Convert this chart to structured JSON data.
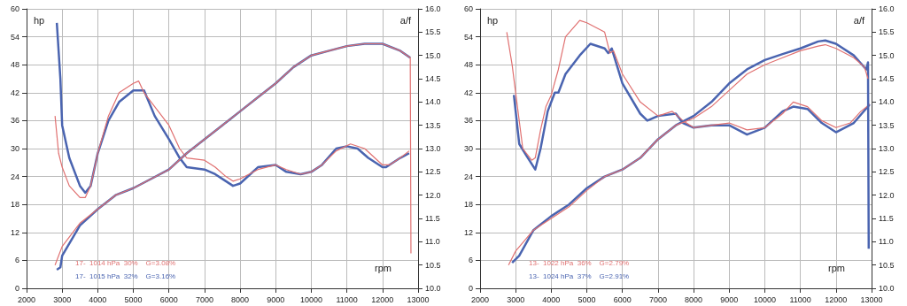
{
  "chart_data": [
    {
      "type": "line",
      "xlabel": "rpm",
      "ylabel": "hp",
      "y2label": "a/f",
      "grid": true,
      "legend": "bottom left",
      "xlim": [
        2000,
        13000
      ],
      "xticks": [
        2000,
        3000,
        4000,
        5000,
        6000,
        7000,
        8000,
        9000,
        10000,
        11000,
        12000,
        13000
      ],
      "ylim": [
        0,
        60
      ],
      "yticks": [
        0,
        6,
        12,
        18,
        24,
        30,
        36,
        42,
        48,
        54,
        60
      ],
      "y2lim": [
        10,
        16
      ],
      "y2ticks": [
        {
          "value": 10,
          "label": "10.0"
        },
        10.5,
        {
          "value": 11,
          "label": "11.0"
        },
        11.5,
        {
          "value": 12,
          "label": "12.0"
        },
        12.5,
        {
          "value": 13,
          "label": "13.0"
        },
        13.5,
        {
          "value": 14,
          "label": "14.0"
        },
        14.5,
        {
          "value": 15,
          "label": "15.0"
        },
        15.5,
        {
          "value": 16,
          "label": "16.0"
        }
      ],
      "series": [
        {
          "name": "17-  1014 hPa  30%    G=3.08%",
          "color": "#e07070",
          "x": [
            2800,
            3000,
            3500,
            4000,
            4500,
            5000,
            5500,
            6000,
            6500,
            7000,
            7500,
            8000,
            8500,
            9000,
            9500,
            10000,
            10500,
            11000,
            11500,
            12000,
            12500,
            12780,
            12800
          ],
          "values": [
            5,
            9,
            14,
            17,
            20,
            21.5,
            23.5,
            25.5,
            29,
            32,
            35,
            38,
            41,
            44,
            47.5,
            50,
            51,
            52,
            52.5,
            52.5,
            51,
            49.5,
            7.5
          ]
        },
        {
          "name": "17-  1015 hPa  32%    G=3.16%",
          "color": "#4a64b0",
          "x": [
            2850,
            2950,
            3000,
            3500,
            4000,
            4500,
            5000,
            5500,
            6000,
            6500,
            7000,
            7500,
            8000,
            8500,
            9000,
            9500,
            10000,
            10500,
            11000,
            11500,
            12000,
            12500,
            12780
          ],
          "values": [
            4,
            4.5,
            7,
            13.5,
            17,
            20,
            21.5,
            23.5,
            25.5,
            29,
            32,
            35,
            38,
            41,
            44,
            47.5,
            50,
            51,
            52,
            52.5,
            52.5,
            51,
            49.5
          ]
        },
        {
          "axis": "y2",
          "color": "#e07070",
          "x": [
            2800,
            2900,
            3000,
            3200,
            3500,
            3650,
            3800,
            4000,
            4300,
            4600,
            5000,
            5150,
            5300,
            5600,
            6000,
            6300,
            6500,
            7000,
            7300,
            7600,
            7800,
            8000,
            8500,
            9000,
            9300,
            9700,
            10000,
            10300,
            10700,
            11100,
            11500,
            12000,
            12200,
            12500,
            12750
          ],
          "values": [
            13.7,
            12.9,
            12.6,
            12.2,
            11.95,
            11.95,
            12.2,
            12.9,
            13.7,
            14.2,
            14.4,
            14.45,
            14.2,
            13.9,
            13.5,
            13.0,
            12.8,
            12.75,
            12.6,
            12.4,
            12.3,
            12.35,
            12.55,
            12.65,
            12.55,
            12.45,
            12.5,
            12.65,
            12.95,
            13.1,
            13.0,
            12.65,
            12.65,
            12.8,
            12.95
          ]
        },
        {
          "axis": "y2",
          "color": "#4a64b0",
          "x": [
            2850,
            2950,
            3000,
            3200,
            3500,
            3650,
            3800,
            4000,
            4300,
            4600,
            5000,
            5300,
            5600,
            6000,
            6300,
            6500,
            7000,
            7300,
            7600,
            7800,
            8000,
            8500,
            9000,
            9300,
            9700,
            10000,
            10300,
            10700,
            11000,
            11300,
            11600,
            12000,
            12100,
            12500,
            12750
          ],
          "values": [
            15.7,
            14.5,
            13.5,
            12.8,
            12.2,
            12.05,
            12.2,
            12.9,
            13.6,
            14.0,
            14.25,
            14.25,
            13.7,
            13.2,
            12.8,
            12.6,
            12.55,
            12.45,
            12.3,
            12.2,
            12.25,
            12.6,
            12.65,
            12.5,
            12.45,
            12.5,
            12.65,
            13.0,
            13.05,
            13.0,
            12.8,
            12.6,
            12.6,
            12.8,
            12.9
          ]
        }
      ]
    },
    {
      "type": "line",
      "xlabel": "rpm",
      "ylabel": "hp",
      "y2label": "a/f",
      "grid": true,
      "legend": "bottom left",
      "xlim": [
        2000,
        13000
      ],
      "xticks": [
        2000,
        3000,
        4000,
        5000,
        6000,
        7000,
        8000,
        9000,
        10000,
        11000,
        12000,
        13000
      ],
      "ylim": [
        0,
        60
      ],
      "yticks": [
        0,
        6,
        12,
        18,
        24,
        30,
        36,
        42,
        48,
        54,
        60
      ],
      "y2lim": [
        10,
        16
      ],
      "y2ticks": [
        {
          "value": 10,
          "label": "10.0"
        },
        10.5,
        {
          "value": 11,
          "label": "11.0"
        },
        11.5,
        {
          "value": 12,
          "label": "12.0"
        },
        12.5,
        {
          "value": 13,
          "label": "13.0"
        },
        13.5,
        {
          "value": 14,
          "label": "14.0"
        },
        14.5,
        {
          "value": 15,
          "label": "15.0"
        },
        15.5,
        {
          "value": 16,
          "label": "16.0"
        }
      ],
      "series": [
        {
          "name": "13-  1022 hPa  36%    G=2.79%",
          "color": "#e07070",
          "x": [
            2800,
            3000,
            3500,
            4000,
            4500,
            5000,
            5500,
            6000,
            6500,
            7000,
            7500,
            8000,
            8500,
            9000,
            9500,
            10000,
            10500,
            11000,
            11500,
            11700,
            12000,
            12500,
            12800,
            12900
          ],
          "values": [
            5,
            8,
            12.5,
            15,
            17.5,
            21,
            24,
            25.5,
            28,
            32,
            35,
            36.5,
            39,
            42.5,
            46,
            48,
            49.5,
            51,
            52,
            52.3,
            51.5,
            49.5,
            47.5,
            45
          ]
        },
        {
          "name": "13-  1024 hPa  37%    G=2.91%",
          "color": "#4a64b0",
          "x": [
            2900,
            3100,
            3500,
            4000,
            4500,
            5000,
            5500,
            6000,
            6500,
            7000,
            7500,
            8000,
            8500,
            9000,
            9500,
            10000,
            10500,
            11000,
            11500,
            11700,
            12000,
            12500,
            12850,
            12900,
            12920
          ],
          "values": [
            5.5,
            7,
            12.5,
            15.5,
            18,
            21.5,
            24,
            25.5,
            28,
            32,
            35,
            37,
            40,
            44,
            47,
            49,
            50.3,
            51.5,
            53,
            53.2,
            52.5,
            50,
            47,
            48.5,
            8.5
          ]
        },
        {
          "axis": "y2",
          "color": "#e07070",
          "x": [
            2750,
            2900,
            3000,
            3200,
            3450,
            3550,
            3700,
            3850,
            4000,
            4200,
            4400,
            4800,
            5000,
            5500,
            5650,
            5750,
            6000,
            6500,
            7000,
            7400,
            7700,
            8000,
            8500,
            9000,
            9500,
            10000,
            10500,
            10800,
            11200,
            11600,
            12000,
            12400,
            12700,
            12950
          ],
          "values": [
            15.5,
            14.8,
            14.2,
            13.0,
            12.75,
            12.8,
            13.4,
            13.9,
            14.15,
            14.7,
            15.4,
            15.75,
            15.7,
            15.5,
            15.05,
            15.1,
            14.6,
            14.0,
            13.7,
            13.8,
            13.6,
            13.45,
            13.5,
            13.55,
            13.4,
            13.45,
            13.75,
            14.0,
            13.9,
            13.6,
            13.45,
            13.55,
            13.8,
            13.95
          ]
        },
        {
          "axis": "y2",
          "color": "#4a64b0",
          "x": [
            2950,
            3100,
            3300,
            3550,
            3700,
            3900,
            4100,
            4200,
            4400,
            4800,
            5100,
            5500,
            5600,
            5700,
            6000,
            6500,
            6700,
            7000,
            7500,
            7700,
            8000,
            8500,
            9000,
            9500,
            10000,
            10500,
            10800,
            11200,
            11600,
            12000,
            12500,
            12950
          ],
          "values": [
            14.15,
            13.1,
            12.85,
            12.55,
            13.0,
            13.8,
            14.2,
            14.2,
            14.6,
            15.0,
            15.25,
            15.15,
            15.05,
            15.15,
            14.4,
            13.75,
            13.6,
            13.7,
            13.75,
            13.55,
            13.45,
            13.5,
            13.5,
            13.3,
            13.45,
            13.8,
            13.9,
            13.85,
            13.55,
            13.35,
            13.55,
            13.95
          ]
        }
      ]
    }
  ]
}
